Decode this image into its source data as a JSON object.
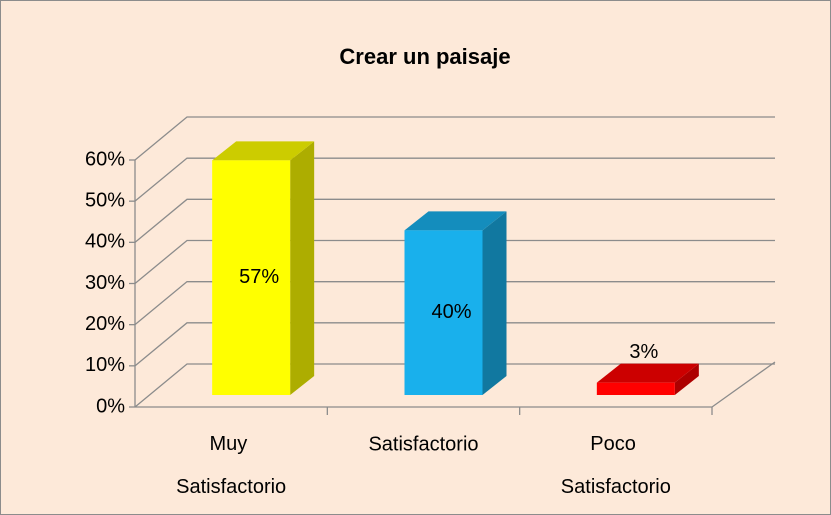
{
  "chart_data": {
    "type": "bar3d",
    "title": "Crear un paisaje",
    "categories": [
      "Muy Satisfactorio",
      "Satisfactorio",
      "Poco Satisfactorio"
    ],
    "values": [
      57,
      40,
      3
    ],
    "value_labels": [
      "57%",
      "40%",
      "3%"
    ],
    "colors": [
      "#ffff00",
      "#19b0ec",
      "#ff0000"
    ],
    "ylim": [
      0,
      60
    ],
    "yticks": [
      {
        "value": 0,
        "label": "0%"
      },
      {
        "value": 10,
        "label": "10%"
      },
      {
        "value": 20,
        "label": "20%"
      },
      {
        "value": 30,
        "label": "30%"
      },
      {
        "value": 40,
        "label": "40%"
      },
      {
        "value": 50,
        "label": "50%"
      },
      {
        "value": 60,
        "label": "60%"
      }
    ],
    "grid": true
  }
}
